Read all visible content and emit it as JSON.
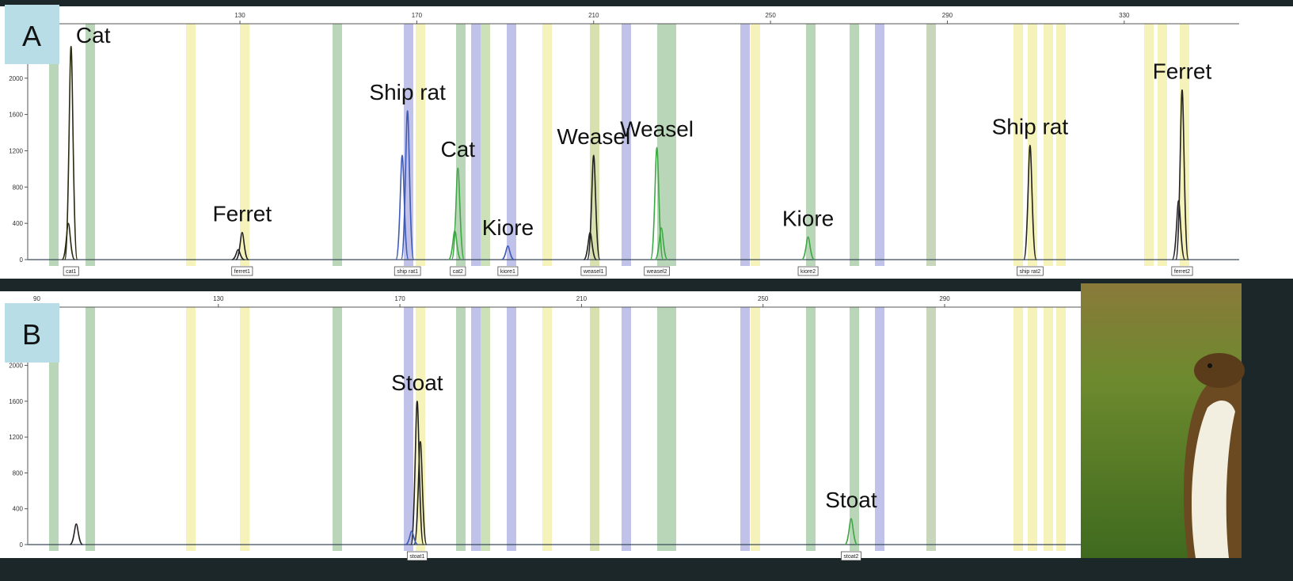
{
  "chart_data": [
    {
      "type": "line",
      "panel_label": "A",
      "xlim": [
        82,
        356
      ],
      "xticks": [
        130,
        170,
        210,
        250,
        290,
        330
      ],
      "ylim": [
        0,
        2600
      ],
      "yticks": [
        0,
        400,
        800,
        1200,
        1600,
        2000
      ],
      "peaks": [
        {
          "label": "Cat",
          "bin": "cat1",
          "x": 91.8,
          "height": 2350,
          "color": "#2b2b10"
        },
        {
          "x": 91.2,
          "height": 400,
          "color": "#2b2b10"
        },
        {
          "label": "Ferret",
          "bin": "ferret1",
          "x": 130.5,
          "height": 300,
          "color": "#222222"
        },
        {
          "x": 129.6,
          "height": 110,
          "color": "#222222"
        },
        {
          "label": "Ship rat",
          "bin": "ship rat1",
          "x": 167.9,
          "height": 1640,
          "color": "#3f5bb5"
        },
        {
          "x": 166.7,
          "height": 1150,
          "color": "#3f5bb5"
        },
        {
          "label": "Cat",
          "bin": "cat2",
          "x": 179.3,
          "height": 1010,
          "color": "#3ea845"
        },
        {
          "x": 178.6,
          "height": 320,
          "color": "#3ea845"
        },
        {
          "label": "Kiore",
          "bin": "kiore1",
          "x": 190.6,
          "height": 150,
          "color": "#3f5bb5"
        },
        {
          "label": "Weasel",
          "bin": "weasel1",
          "x": 210.0,
          "height": 1150,
          "color": "#222222"
        },
        {
          "x": 209.2,
          "height": 300,
          "color": "#222222"
        },
        {
          "label": "Weasel",
          "bin": "weasel2",
          "x": 224.3,
          "height": 1235,
          "color": "#3ea845"
        },
        {
          "x": 225.3,
          "height": 350,
          "color": "#3ea845"
        },
        {
          "label": "Kiore",
          "bin": "kiore2",
          "x": 258.5,
          "height": 250,
          "color": "#3ea845"
        },
        {
          "label": "Ship rat",
          "bin": "ship rat2",
          "x": 308.7,
          "height": 1260,
          "color": "#222222"
        },
        {
          "label": "Ferret",
          "bin": "ferret2",
          "x": 343.1,
          "height": 1870,
          "color": "#222222"
        },
        {
          "x": 342.3,
          "height": 650,
          "color": "#222222"
        }
      ]
    },
    {
      "type": "line",
      "panel_label": "B",
      "xlim": [
        88,
        320
      ],
      "xticks": [
        90,
        130,
        170,
        210,
        250,
        290
      ],
      "ylim": [
        0,
        2650
      ],
      "yticks": [
        0,
        400,
        800,
        1200,
        1600,
        2000
      ],
      "peaks": [
        {
          "x": 98.7,
          "height": 230,
          "color": "#222222"
        },
        {
          "label": "Stoat",
          "bin": "stoat1",
          "x": 173.8,
          "height": 1600,
          "color": "#222222"
        },
        {
          "x": 174.5,
          "height": 1150,
          "color": "#222222"
        },
        {
          "x": 172.6,
          "height": 150,
          "color": "#3f5bb5"
        },
        {
          "label": "Stoat",
          "bin": "stoat2",
          "x": 269.4,
          "height": 290,
          "color": "#3ea845"
        }
      ]
    }
  ]
}
